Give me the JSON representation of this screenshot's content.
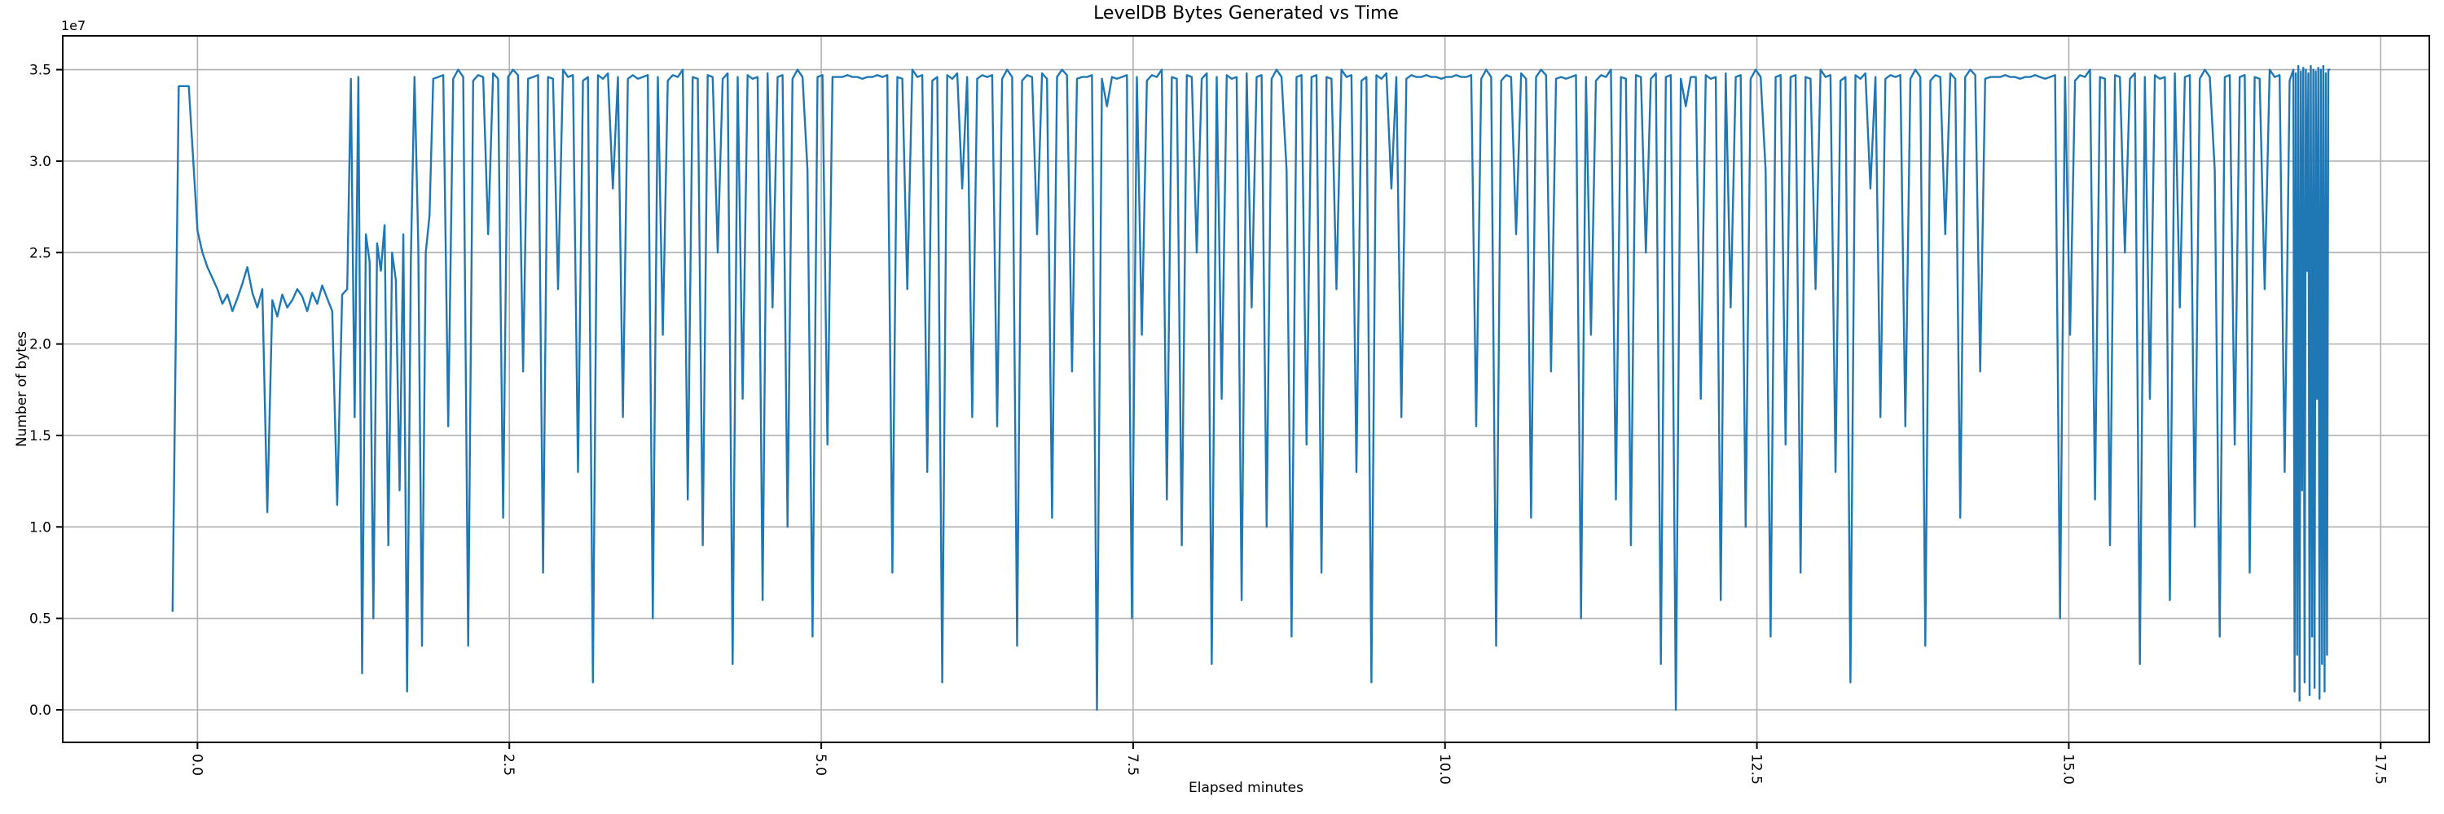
{
  "figure": {
    "title": "LevelDB Bytes Generated vs Time",
    "xlabel": "Elapsed minutes",
    "ylabel": "Number of bytes",
    "offset_text": "1e7",
    "colors": {
      "line": "#1f77b4",
      "grid": "#b0b0b0",
      "spine": "#000000",
      "text": "#000000",
      "background": "#ffffff"
    }
  },
  "chart_data": {
    "type": "line",
    "title": "LevelDB Bytes Generated vs Time",
    "xlabel": "Elapsed minutes",
    "ylabel": "Number of bytes",
    "x_unit": "minutes",
    "y_offset_label": "1e7",
    "y_scale": 10000000,
    "grid": true,
    "legend": false,
    "xlim": [
      -1.08,
      17.89
    ],
    "ylim_1e7": [
      -0.178,
      3.685
    ],
    "x_ticks": {
      "values": [
        0.0,
        2.5,
        5.0,
        7.5,
        10.0,
        12.5,
        15.0,
        17.5
      ],
      "labels": [
        "0.0",
        "2.5",
        "5.0",
        "7.5",
        "10.0",
        "12.5",
        "15.0",
        "17.5"
      ],
      "rotation_deg": 90
    },
    "y_ticks": {
      "values_1e7": [
        0.0,
        0.5,
        1.0,
        1.5,
        2.0,
        2.5,
        3.0,
        3.5
      ],
      "labels": [
        "0.0",
        "0.5",
        "1.0",
        "1.5",
        "2.0",
        "2.5",
        "3.0",
        "3.5"
      ]
    },
    "series": [
      {
        "name": "bytes generated",
        "color": "#1f77b4",
        "x_minutes_runs": [
          {
            "values": [
              -0.2,
              -0.15,
              -0.07,
              0.0,
              0.04,
              0.08,
              0.12
            ]
          },
          {
            "start": 0.16,
            "step": 0.04,
            "count": 26
          },
          {
            "values": [
              1.2
            ]
          },
          {
            "start": 1.23,
            "step": 0.03,
            "count": 23
          },
          {
            "start": 1.93,
            "step": 0.04,
            "count": 372
          },
          {
            "start": 16.8,
            "step": 0.01,
            "count": 30
          }
        ],
        "y_1e7": [
          0.54,
          3.41,
          3.41,
          2.62,
          2.5,
          2.42,
          2.36,
          2.3,
          2.22,
          2.27,
          2.18,
          2.25,
          2.33,
          2.42,
          2.28,
          2.2,
          2.3,
          1.08,
          2.24,
          2.15,
          2.27,
          2.2,
          2.24,
          2.3,
          2.26,
          2.18,
          2.28,
          2.22,
          2.32,
          2.25,
          2.18,
          1.12,
          2.27,
          2.3,
          3.45,
          1.6,
          3.46,
          0.2,
          2.6,
          2.45,
          0.5,
          2.55,
          2.4,
          2.65,
          0.9,
          2.5,
          2.35,
          1.2,
          2.6,
          0.1,
          2.45,
          3.46,
          2.55,
          0.35,
          2.5,
          2.7,
          3.45,
          3.46,
          3.47,
          1.55,
          3.45,
          3.5,
          3.46,
          0.35,
          3.44,
          3.47,
          3.46,
          2.6,
          3.48,
          3.45,
          1.05,
          3.46,
          3.5,
          3.47,
          1.85,
          3.45,
          3.46,
          3.47,
          0.75,
          3.46,
          3.45,
          2.3,
          3.5,
          3.46,
          3.47,
          1.3,
          3.44,
          3.46,
          0.15,
          3.47,
          3.45,
          3.48,
          2.85,
          3.46,
          1.6,
          3.45,
          3.47,
          3.45,
          3.46,
          3.47,
          0.5,
          3.46,
          2.05,
          3.44,
          3.47,
          3.46,
          3.5,
          1.15,
          3.46,
          3.45,
          0.9,
          3.47,
          3.46,
          2.5,
          3.45,
          3.48,
          0.25,
          3.46,
          1.7,
          3.47,
          3.45,
          3.46,
          0.6,
          3.48,
          2.2,
          3.46,
          3.47,
          1.0,
          3.45,
          3.5,
          3.46,
          2.95,
          0.4,
          3.46,
          3.47,
          1.45,
          3.46,
          3.46,
          3.46,
          3.47,
          3.46,
          3.46,
          3.45,
          3.46,
          3.46,
          3.47,
          3.46,
          3.47,
          0.75,
          3.46,
          3.45,
          2.3,
          3.5,
          3.46,
          3.47,
          1.3,
          3.44,
          3.46,
          0.15,
          3.47,
          3.45,
          3.48,
          2.85,
          3.46,
          1.6,
          3.45,
          3.47,
          3.46,
          3.47,
          1.55,
          3.45,
          3.5,
          3.46,
          0.35,
          3.44,
          3.47,
          3.46,
          2.6,
          3.48,
          3.45,
          1.05,
          3.46,
          3.5,
          3.47,
          1.85,
          3.45,
          3.46,
          3.46,
          3.47,
          0.0,
          3.45,
          3.3,
          3.46,
          3.45,
          3.46,
          3.47,
          0.5,
          3.46,
          2.05,
          3.44,
          3.47,
          3.46,
          3.5,
          1.15,
          3.46,
          3.45,
          0.9,
          3.47,
          3.46,
          2.5,
          3.45,
          3.48,
          0.25,
          3.46,
          1.7,
          3.47,
          3.45,
          3.46,
          0.6,
          3.48,
          2.2,
          3.46,
          3.47,
          1.0,
          3.45,
          3.5,
          3.46,
          2.95,
          0.4,
          3.46,
          3.47,
          1.45,
          3.46,
          3.47,
          0.75,
          3.46,
          3.45,
          2.3,
          3.5,
          3.46,
          3.47,
          1.3,
          3.44,
          3.46,
          0.15,
          3.47,
          3.45,
          3.48,
          2.85,
          3.46,
          1.6,
          3.45,
          3.47,
          3.46,
          3.46,
          3.47,
          3.46,
          3.46,
          3.45,
          3.46,
          3.46,
          3.47,
          3.46,
          3.46,
          3.47,
          1.55,
          3.45,
          3.5,
          3.46,
          0.35,
          3.44,
          3.47,
          3.46,
          2.6,
          3.48,
          3.45,
          1.05,
          3.46,
          3.5,
          3.47,
          1.85,
          3.45,
          3.46,
          3.45,
          3.46,
          3.47,
          0.5,
          3.46,
          2.05,
          3.44,
          3.47,
          3.46,
          3.5,
          1.15,
          3.46,
          3.45,
          0.9,
          3.47,
          3.46,
          2.5,
          3.45,
          3.48,
          0.25,
          3.46,
          3.47,
          0.0,
          3.45,
          3.3,
          3.46,
          3.46,
          1.7,
          3.47,
          3.45,
          3.46,
          0.6,
          3.48,
          2.2,
          3.46,
          3.47,
          1.0,
          3.45,
          3.5,
          3.46,
          2.95,
          0.4,
          3.46,
          3.47,
          1.45,
          3.46,
          3.47,
          0.75,
          3.46,
          3.45,
          2.3,
          3.5,
          3.46,
          3.47,
          1.3,
          3.44,
          3.46,
          0.15,
          3.47,
          3.45,
          3.48,
          2.85,
          3.46,
          1.6,
          3.45,
          3.47,
          3.46,
          3.47,
          1.55,
          3.45,
          3.5,
          3.46,
          0.35,
          3.44,
          3.47,
          3.46,
          2.6,
          3.48,
          3.45,
          1.05,
          3.46,
          3.5,
          3.47,
          1.85,
          3.45,
          3.46,
          3.46,
          3.46,
          3.47,
          3.46,
          3.46,
          3.45,
          3.46,
          3.46,
          3.47,
          3.46,
          3.45,
          3.46,
          3.47,
          0.5,
          3.46,
          2.05,
          3.44,
          3.47,
          3.46,
          3.5,
          1.15,
          3.46,
          3.45,
          0.9,
          3.47,
          3.46,
          2.5,
          3.45,
          3.48,
          0.25,
          3.46,
          1.7,
          3.47,
          3.45,
          3.46,
          0.6,
          3.48,
          2.2,
          3.46,
          3.47,
          1.0,
          3.45,
          3.5,
          3.46,
          2.95,
          0.4,
          3.46,
          3.47,
          1.45,
          3.46,
          3.47,
          0.75,
          3.46,
          3.45,
          2.3,
          3.5,
          3.46,
          3.47,
          1.3,
          3.44,
          3.5,
          0.1,
          3.48,
          0.3,
          3.52,
          0.05,
          3.49,
          1.2,
          3.51,
          0.15,
          3.5,
          2.4,
          3.48,
          0.08,
          3.52,
          0.4,
          3.5,
          0.12,
          3.49,
          1.7,
          3.51,
          0.06,
          3.5,
          0.25,
          3.52,
          0.1,
          3.48,
          0.3,
          3.5,
          3.5
        ]
      }
    ]
  }
}
